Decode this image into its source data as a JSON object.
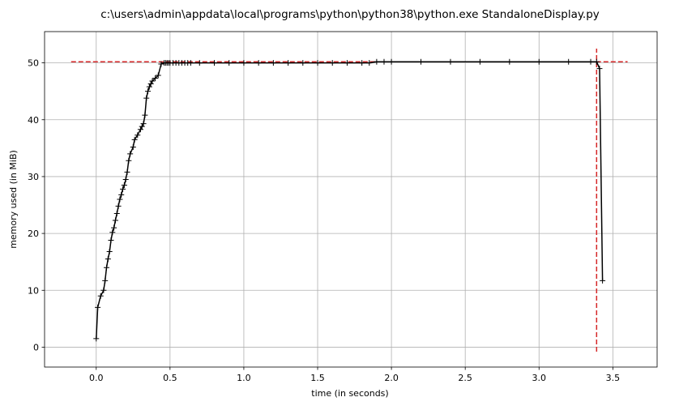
{
  "chart_data": {
    "type": "line",
    "title": "c:\\users\\admin\\appdata\\local\\programs\\python\\python38\\python.exe StandaloneDisplay.py",
    "xlabel": "time (in seconds)",
    "ylabel": "memory used (in MiB)",
    "xlim": [
      -0.35,
      3.8
    ],
    "ylim": [
      -3.5,
      55.5
    ],
    "grid": true,
    "x_ticks": [
      0.0,
      0.5,
      1.0,
      1.5,
      2.0,
      2.5,
      3.0,
      3.5
    ],
    "x_tick_labels": [
      "0.0",
      "0.5",
      "1.0",
      "1.5",
      "2.0",
      "2.5",
      "3.0",
      "3.5"
    ],
    "y_ticks": [
      0,
      10,
      20,
      30,
      40,
      50
    ],
    "y_tick_labels": [
      "0",
      "10",
      "20",
      "30",
      "40",
      "50"
    ],
    "series": [
      {
        "color": "#000000",
        "marker": "plus",
        "x": [
          0.0,
          0.01,
          0.03,
          0.05,
          0.06,
          0.07,
          0.08,
          0.09,
          0.1,
          0.11,
          0.12,
          0.13,
          0.14,
          0.15,
          0.16,
          0.17,
          0.18,
          0.19,
          0.2,
          0.21,
          0.22,
          0.23,
          0.25,
          0.26,
          0.28,
          0.3,
          0.31,
          0.32,
          0.33,
          0.34,
          0.35,
          0.36,
          0.37,
          0.38,
          0.4,
          0.42,
          0.44,
          0.46,
          0.47,
          0.48,
          0.49,
          0.5,
          0.52,
          0.54,
          0.56,
          0.58,
          0.6,
          0.62,
          0.64,
          0.7,
          0.8,
          0.9,
          1.0,
          1.1,
          1.2,
          1.3,
          1.4,
          1.5,
          1.6,
          1.7,
          1.8,
          1.85,
          1.9,
          1.95,
          2.0,
          2.2,
          2.4,
          2.6,
          2.8,
          3.0,
          3.2,
          3.35,
          3.39,
          3.41,
          3.43
        ],
        "y": [
          1.5,
          7.0,
          9.0,
          10.0,
          11.7,
          14.0,
          15.5,
          16.8,
          18.8,
          20.2,
          21.0,
          22.3,
          23.5,
          24.8,
          26.0,
          26.8,
          27.8,
          28.5,
          29.5,
          30.8,
          32.8,
          34.0,
          35.2,
          36.5,
          37.3,
          38.3,
          38.8,
          39.3,
          40.8,
          43.8,
          45.0,
          45.8,
          46.3,
          46.8,
          47.3,
          47.8,
          49.8,
          50.0,
          50.0,
          50.0,
          50.0,
          50.0,
          50.0,
          50.0,
          50.0,
          50.0,
          50.0,
          50.0,
          50.0,
          50.0,
          50.0,
          50.0,
          50.0,
          50.0,
          50.0,
          50.0,
          50.0,
          50.0,
          50.0,
          50.0,
          50.0,
          50.0,
          50.2,
          50.2,
          50.2,
          50.2,
          50.2,
          50.2,
          50.2,
          50.2,
          50.2,
          50.2,
          50.2,
          49.0,
          11.7
        ]
      }
    ],
    "reference_lines": [
      {
        "orientation": "horizontal",
        "value": 50.2,
        "from": -0.17,
        "to": 3.6,
        "color": "#d62728",
        "style": "dashed"
      },
      {
        "orientation": "vertical",
        "value": 3.39,
        "from": -0.8,
        "to": 52.5,
        "color": "#d62728",
        "style": "dashed"
      }
    ]
  }
}
